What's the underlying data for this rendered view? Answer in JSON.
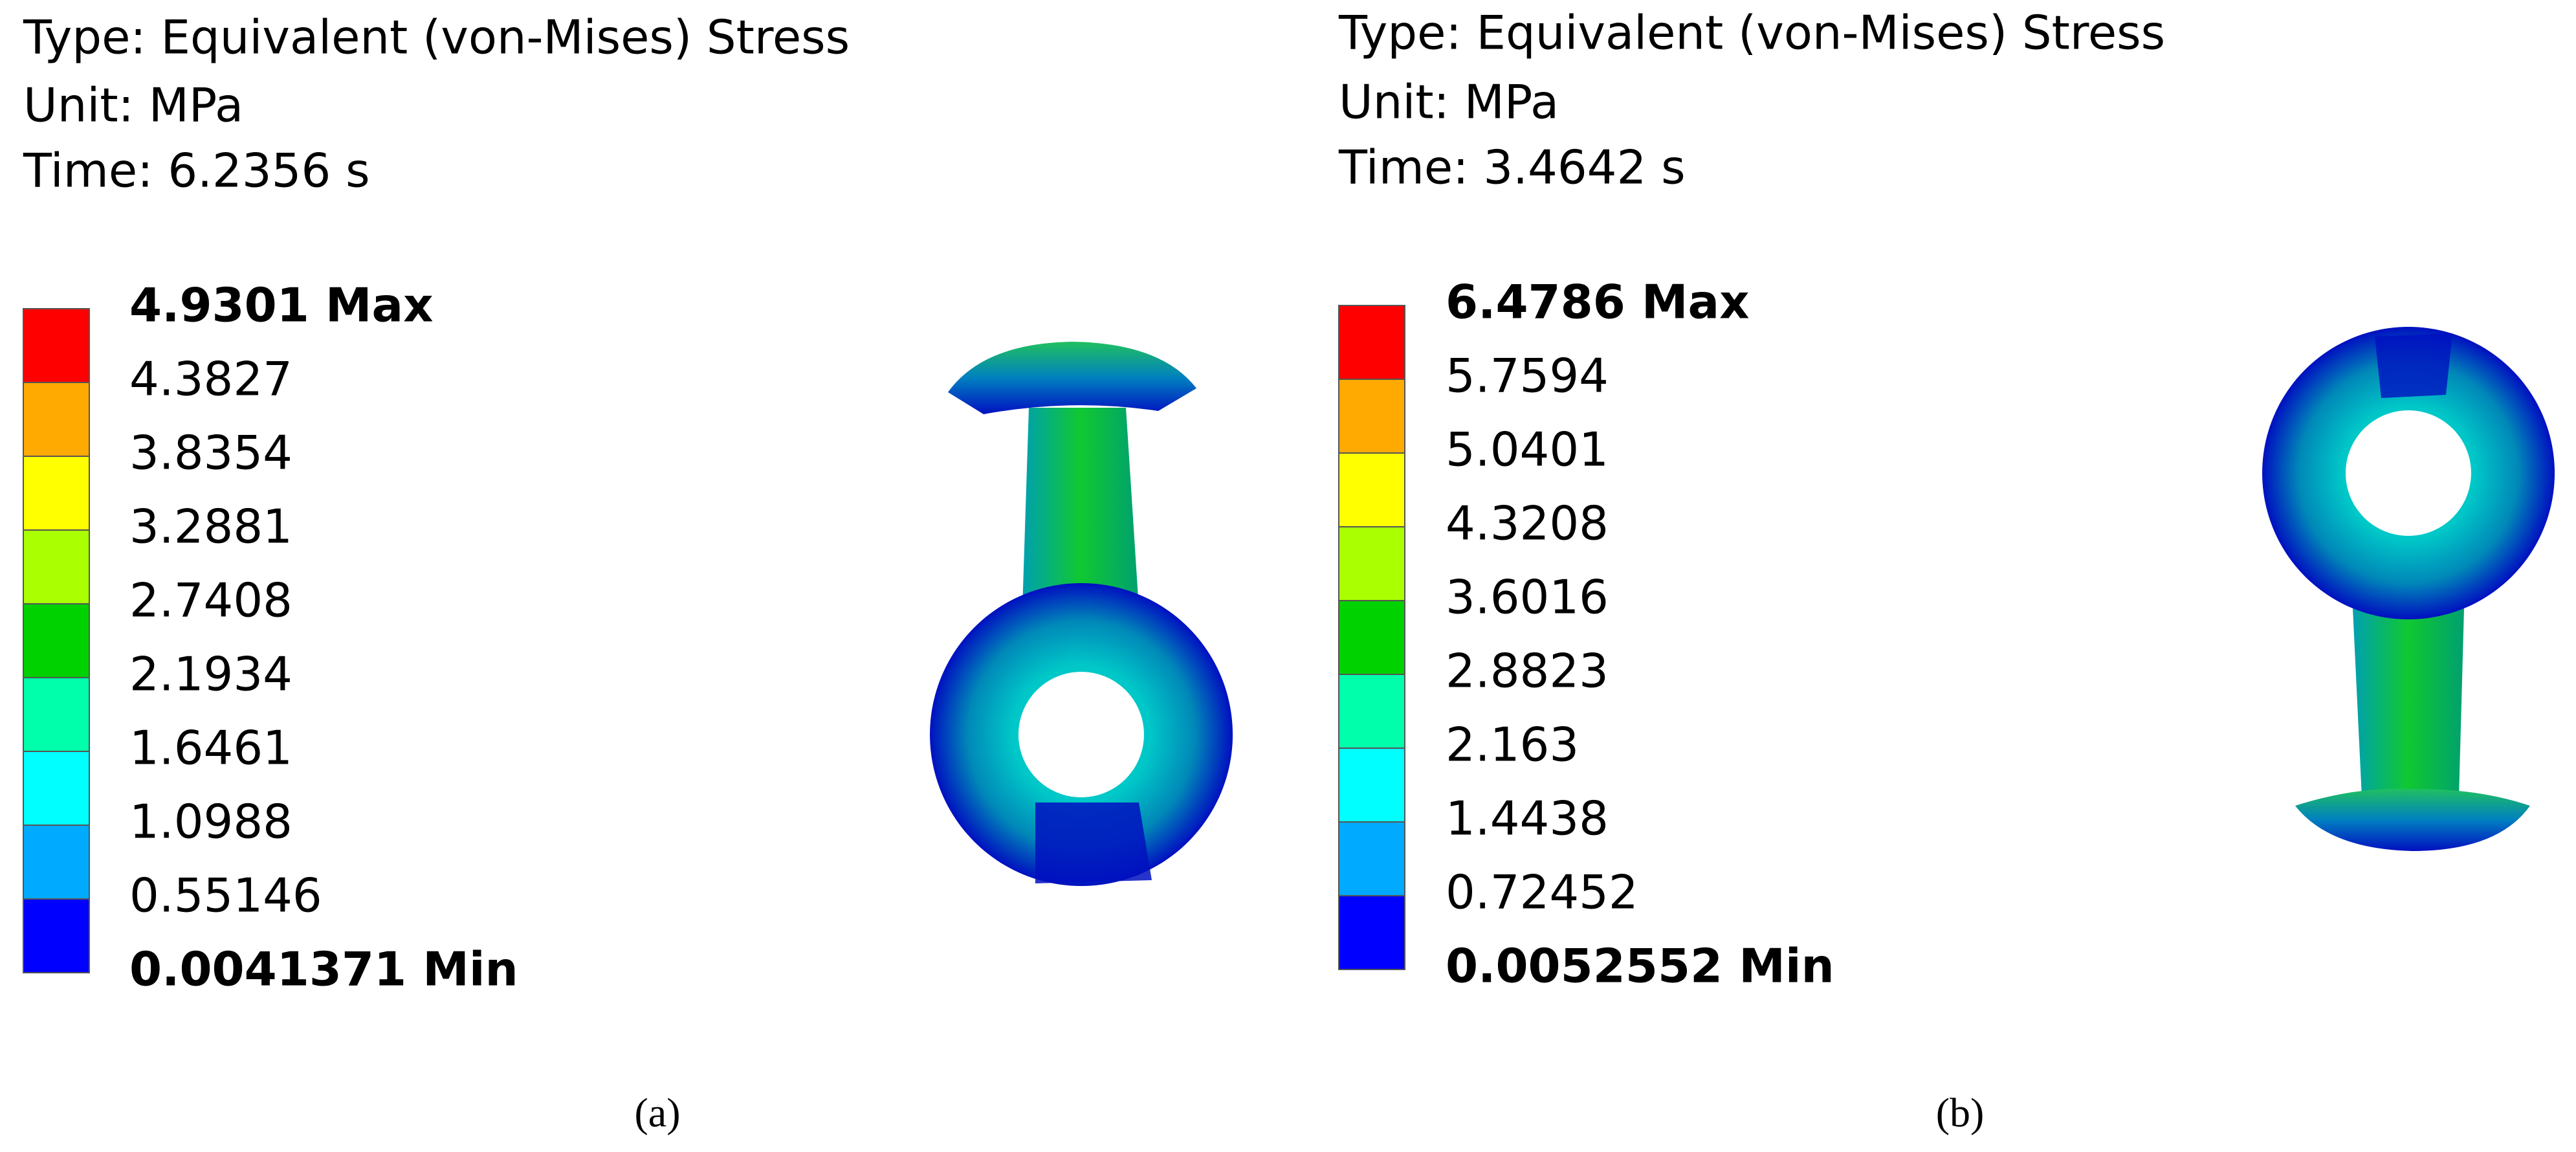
{
  "panels": [
    {
      "header": [
        "Type: Equivalent (von-Mises) Stress",
        "Unit: MPa",
        "Time: 6.2356 s"
      ],
      "legend": {
        "labels": [
          "4.9301 Max",
          "4.3827",
          "3.8354",
          "3.2881",
          "2.7408",
          "2.1934",
          "1.6461",
          "1.0988",
          "0.55146",
          "0.0041371 Min"
        ],
        "colors": [
          "#ff0000",
          "#ffaa00",
          "#ffff00",
          "#aaff00",
          "#00d200",
          "#00ffaa",
          "#00ffff",
          "#00aaff",
          "#0000ff"
        ]
      },
      "caption": "(a)"
    },
    {
      "header": [
        "Type: Equivalent (von-Mises) Stress",
        "Unit: MPa",
        "Time: 3.4642 s"
      ],
      "legend": {
        "labels": [
          "6.4786 Max",
          "5.7594",
          "5.0401",
          "4.3208",
          "3.6016",
          "2.8823",
          "2.163",
          "1.4438",
          "0.72452",
          "0.0052552 Min"
        ],
        "colors": [
          "#ff0000",
          "#ffaa00",
          "#ffff00",
          "#aaff00",
          "#00d200",
          "#00ffaa",
          "#00ffff",
          "#00aaff",
          "#0000ff"
        ]
      },
      "caption": "(b)"
    }
  ]
}
